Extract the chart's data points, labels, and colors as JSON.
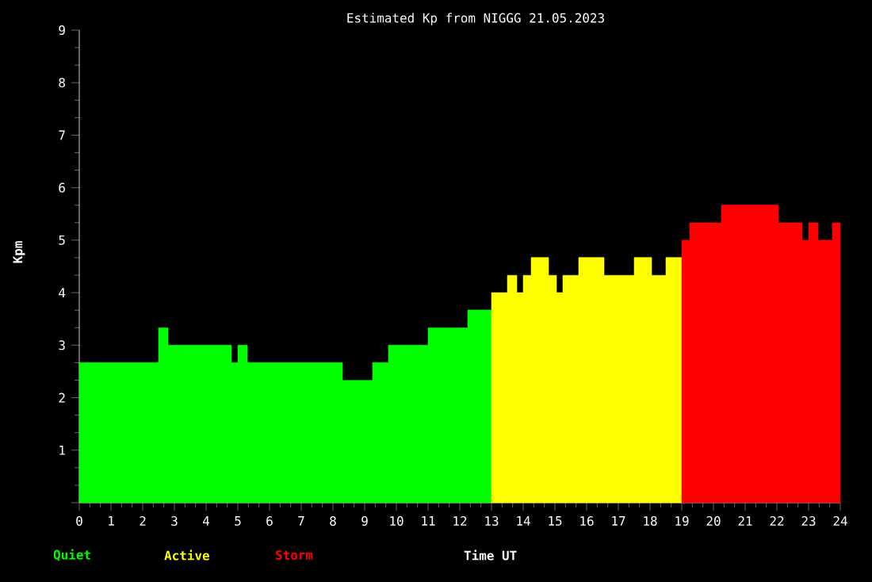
{
  "chart_data": {
    "type": "area",
    "title": "Estimated Kp from NIGGG 21.05.2023",
    "xlabel": "Time UT",
    "ylabel": "Kpm",
    "series": [
      {
        "name": "Quiet",
        "color": "#00ff00",
        "x": [
          0,
          2.5,
          2.8,
          4.8,
          5.0,
          5.3,
          8.3,
          9.25,
          9.75,
          11.0,
          12.25,
          13.0
        ],
        "values": [
          2.67,
          3.33,
          3.0,
          2.67,
          3.0,
          2.67,
          2.33,
          2.67,
          3.0,
          3.33,
          3.67,
          3.67
        ]
      },
      {
        "name": "Active",
        "color": "#ffff00",
        "x": [
          13.0,
          13.5,
          13.8,
          14.0,
          14.25,
          14.8,
          15.05,
          15.25,
          15.75,
          16.55,
          17.5,
          18.05,
          18.5,
          19.0
        ],
        "values": [
          4.0,
          4.33,
          4.0,
          4.33,
          4.67,
          4.33,
          4.0,
          4.33,
          4.67,
          4.33,
          4.67,
          4.33,
          4.67,
          4.67
        ]
      },
      {
        "name": "Storm",
        "color": "#ff0000",
        "x": [
          19.0,
          19.25,
          20.25,
          22.05,
          22.8,
          23.0,
          23.3,
          23.75,
          24.0
        ],
        "values": [
          5.0,
          5.33,
          5.67,
          5.33,
          5.0,
          5.33,
          5.0,
          5.33,
          5.33
        ]
      }
    ],
    "xlim": [
      0,
      24
    ],
    "xticks": [
      0,
      1,
      2,
      3,
      4,
      5,
      6,
      7,
      8,
      9,
      10,
      11,
      12,
      13,
      14,
      15,
      16,
      17,
      18,
      19,
      20,
      21,
      22,
      23,
      24
    ],
    "ylim": [
      0,
      9
    ],
    "yticks": [
      {
        "value": 0,
        "label": null
      },
      1,
      2,
      3,
      4,
      5,
      6,
      7,
      8,
      9
    ],
    "grid": false
  }
}
